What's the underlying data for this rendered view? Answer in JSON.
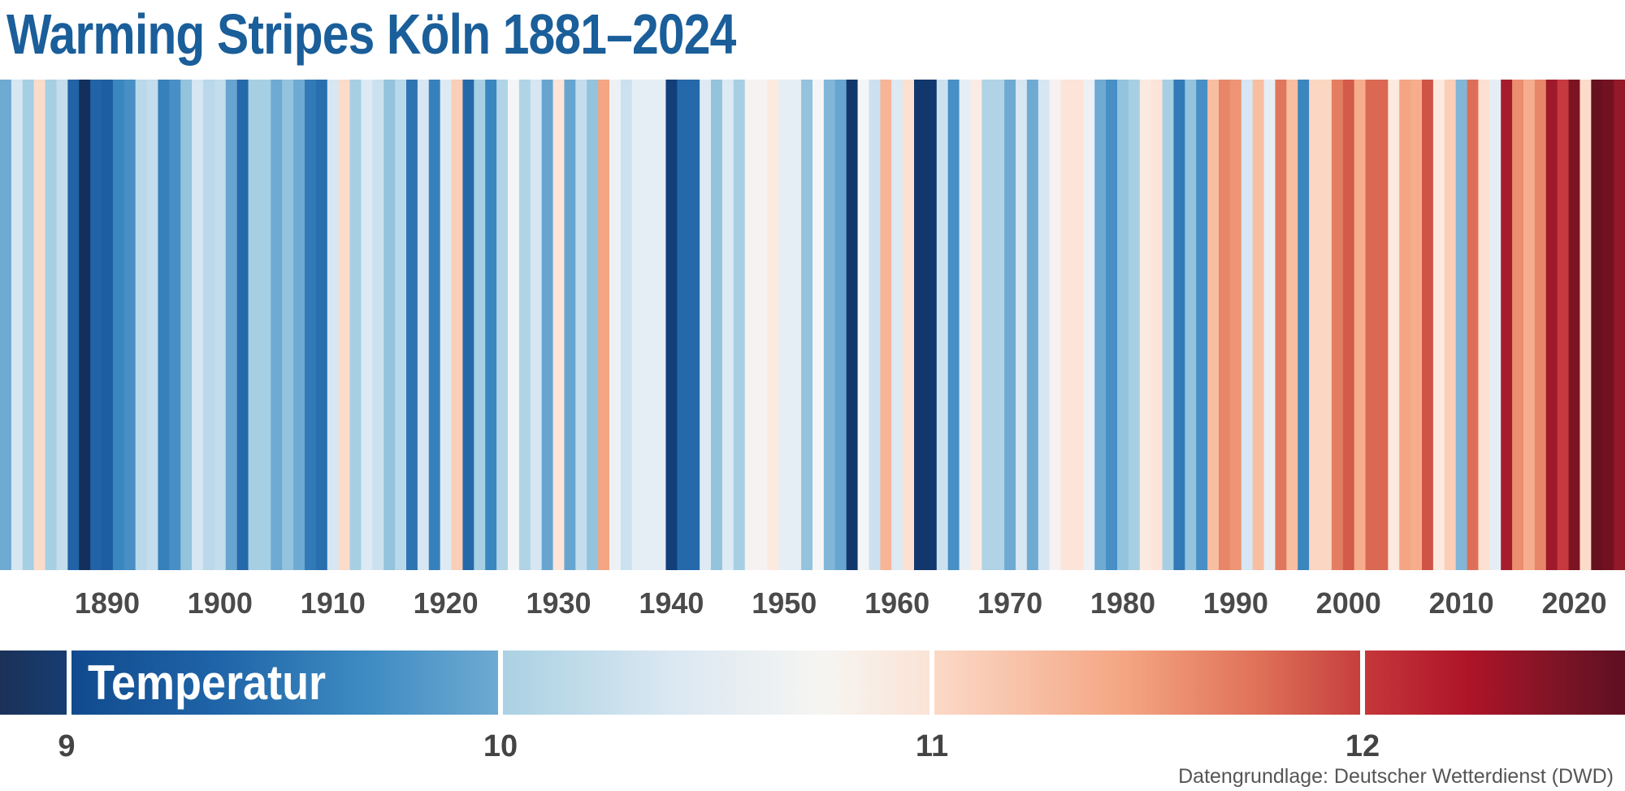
{
  "title": "Warming Stripes Köln 1881–2024",
  "source": "Datengrundlage: Deutscher Wetterdienst (DWD)",
  "chart_data": {
    "type": "heatmap",
    "subtype": "warming-stripes",
    "title": "Warming Stripes Köln 1881–2024",
    "years": [
      1881,
      1882,
      1883,
      1884,
      1885,
      1886,
      1887,
      1888,
      1889,
      1890,
      1891,
      1892,
      1893,
      1894,
      1895,
      1896,
      1897,
      1898,
      1899,
      1900,
      1901,
      1902,
      1903,
      1904,
      1905,
      1906,
      1907,
      1908,
      1909,
      1910,
      1911,
      1912,
      1913,
      1914,
      1915,
      1916,
      1917,
      1918,
      1919,
      1920,
      1921,
      1922,
      1923,
      1924,
      1925,
      1926,
      1927,
      1928,
      1929,
      1930,
      1931,
      1932,
      1933,
      1934,
      1935,
      1936,
      1937,
      1938,
      1939,
      1940,
      1941,
      1942,
      1943,
      1944,
      1945,
      1946,
      1947,
      1948,
      1949,
      1950,
      1951,
      1952,
      1953,
      1954,
      1955,
      1956,
      1957,
      1958,
      1959,
      1960,
      1961,
      1962,
      1963,
      1964,
      1965,
      1966,
      1967,
      1968,
      1969,
      1970,
      1971,
      1972,
      1973,
      1974,
      1975,
      1976,
      1977,
      1978,
      1979,
      1980,
      1981,
      1982,
      1983,
      1984,
      1985,
      1986,
      1987,
      1988,
      1989,
      1990,
      1991,
      1992,
      1993,
      1994,
      1995,
      1996,
      1997,
      1998,
      1999,
      2000,
      2001,
      2002,
      2003,
      2004,
      2005,
      2006,
      2007,
      2008,
      2009,
      2010,
      2011,
      2012,
      2013,
      2014,
      2015,
      2016,
      2017,
      2018,
      2019,
      2020,
      2021,
      2022,
      2023,
      2024
    ],
    "values": [
      10.0,
      10.4,
      10.15,
      10.95,
      10.15,
      10.3,
      9.3,
      8.9,
      9.3,
      9.25,
      9.6,
      9.7,
      10.25,
      10.3,
      9.55,
      9.7,
      10.1,
      10.4,
      10.25,
      10.3,
      9.95,
      9.35,
      10.15,
      10.15,
      10.0,
      10.1,
      10.0,
      9.5,
      9.4,
      10.4,
      10.95,
      10.15,
      10.45,
      10.35,
      10.1,
      10.25,
      9.45,
      10.4,
      9.55,
      10.45,
      11.05,
      9.35,
      10.15,
      9.6,
      10.2,
      10.6,
      10.2,
      10.4,
      9.95,
      10.85,
      9.95,
      10.3,
      10.1,
      11.3,
      10.55,
      10.35,
      10.5,
      10.5,
      10.5,
      9.0,
      9.35,
      9.35,
      10.45,
      10.1,
      10.45,
      10.15,
      10.65,
      10.65,
      10.8,
      10.5,
      10.5,
      10.1,
      10.6,
      10.05,
      9.95,
      8.95,
      10.6,
      10.35,
      11.2,
      10.45,
      10.9,
      8.95,
      8.95,
      10.35,
      9.7,
      10.5,
      10.75,
      10.2,
      10.2,
      10.0,
      10.4,
      10.0,
      10.4,
      10.65,
      10.85,
      10.85,
      10.55,
      10.0,
      9.7,
      10.1,
      10.15,
      10.8,
      10.85,
      10.15,
      9.5,
      10.1,
      9.7,
      11.15,
      11.5,
      11.4,
      10.4,
      11.15,
      10.5,
      11.6,
      11.15,
      9.6,
      11.0,
      11.0,
      11.55,
      11.8,
      11.25,
      11.7,
      11.7,
      10.8,
      11.3,
      11.25,
      11.85,
      10.8,
      11.05,
      10.05,
      11.65,
      10.9,
      10.5,
      12.3,
      11.45,
      11.25,
      11.5,
      12.35,
      12.0,
      12.5,
      10.95,
      12.6,
      12.55,
      12.4
    ],
    "x_tick_labels": [
      "1890",
      "1900",
      "1910",
      "1920",
      "1930",
      "1940",
      "1950",
      "1960",
      "1970",
      "1980",
      "1990",
      "2000",
      "2010",
      "2020"
    ],
    "colorbar": {
      "label": "Temperatur",
      "tick_labels": [
        "9",
        "10",
        "11",
        "12"
      ],
      "range": [
        8.85,
        12.6
      ],
      "colors": [
        "#08306b",
        "#2166ac",
        "#6baed6",
        "#f7f7f7",
        "#f4a582",
        "#d6604d",
        "#b2182b",
        "#67001f"
      ]
    },
    "grid": false
  }
}
